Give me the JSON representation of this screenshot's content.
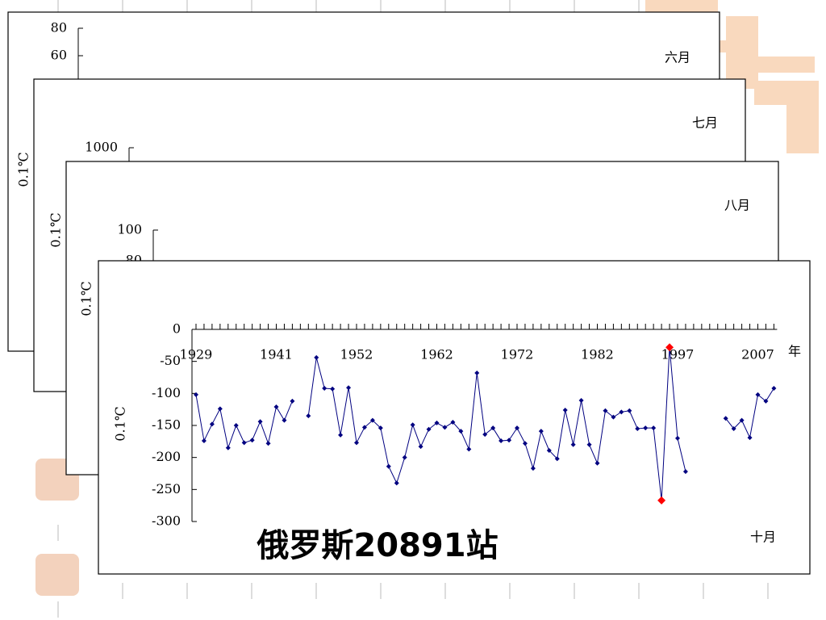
{
  "chart_data": [
    {
      "type": "line",
      "title": "六月",
      "y_label": "0.1℃",
      "ylim": [
        0,
        80
      ],
      "yticks": [
        60,
        80
      ]
    },
    {
      "type": "line",
      "title": "七月",
      "y_label": "0.1℃",
      "ylim": [
        0,
        1000
      ],
      "yticks": [
        1000
      ]
    },
    {
      "type": "line",
      "title": "八月",
      "y_label": "0.1℃",
      "ylim": [
        0,
        100
      ],
      "yticks": [
        80,
        100
      ]
    },
    {
      "type": "line",
      "title": "十月",
      "subtitle": "俄罗斯20891站",
      "y_label": "0.1℃",
      "x_label": "年",
      "ylim": [
        -300,
        0
      ],
      "yticks": [
        0,
        -50,
        -100,
        -150,
        -200,
        -250,
        -300
      ],
      "color": "#000080",
      "highlight_color": "#ff0000",
      "highlight_indices": [
        58,
        59
      ],
      "categories": [
        "1929",
        null,
        null,
        null,
        null,
        null,
        null,
        null,
        null,
        null,
        "1941",
        null,
        null,
        null,
        null,
        null,
        null,
        null,
        null,
        null,
        "1952",
        null,
        null,
        null,
        null,
        null,
        null,
        null,
        null,
        null,
        "1962",
        null,
        null,
        null,
        null,
        null,
        null,
        null,
        null,
        null,
        "1972",
        null,
        null,
        null,
        null,
        null,
        null,
        null,
        null,
        null,
        "1982",
        null,
        null,
        null,
        null,
        null,
        null,
        null,
        null,
        null,
        "1997",
        null,
        null,
        null,
        null,
        null,
        null,
        null,
        null,
        null,
        "2007",
        null,
        null
      ],
      "values": [
        -102,
        -174,
        -148,
        -124,
        -185,
        -150,
        -177,
        -173,
        -144,
        -178,
        -121,
        -142,
        -112,
        null,
        -135,
        -44,
        -92,
        -93,
        -165,
        -91,
        -177,
        -153,
        -142,
        -154,
        -214,
        -240,
        -200,
        -149,
        -183,
        -156,
        -146,
        -153,
        -145,
        -159,
        -187,
        -68,
        -164,
        -154,
        -174,
        -173,
        -154,
        -178,
        -217,
        -159,
        -189,
        -202,
        -126,
        -180,
        -111,
        -180,
        -209,
        -127,
        -137,
        -129,
        -127,
        -155,
        -154,
        -154,
        -267,
        -28,
        -170,
        -222,
        null,
        null,
        null,
        null,
        -139,
        -155,
        -142,
        -169,
        -102,
        -112,
        -92
      ]
    }
  ]
}
